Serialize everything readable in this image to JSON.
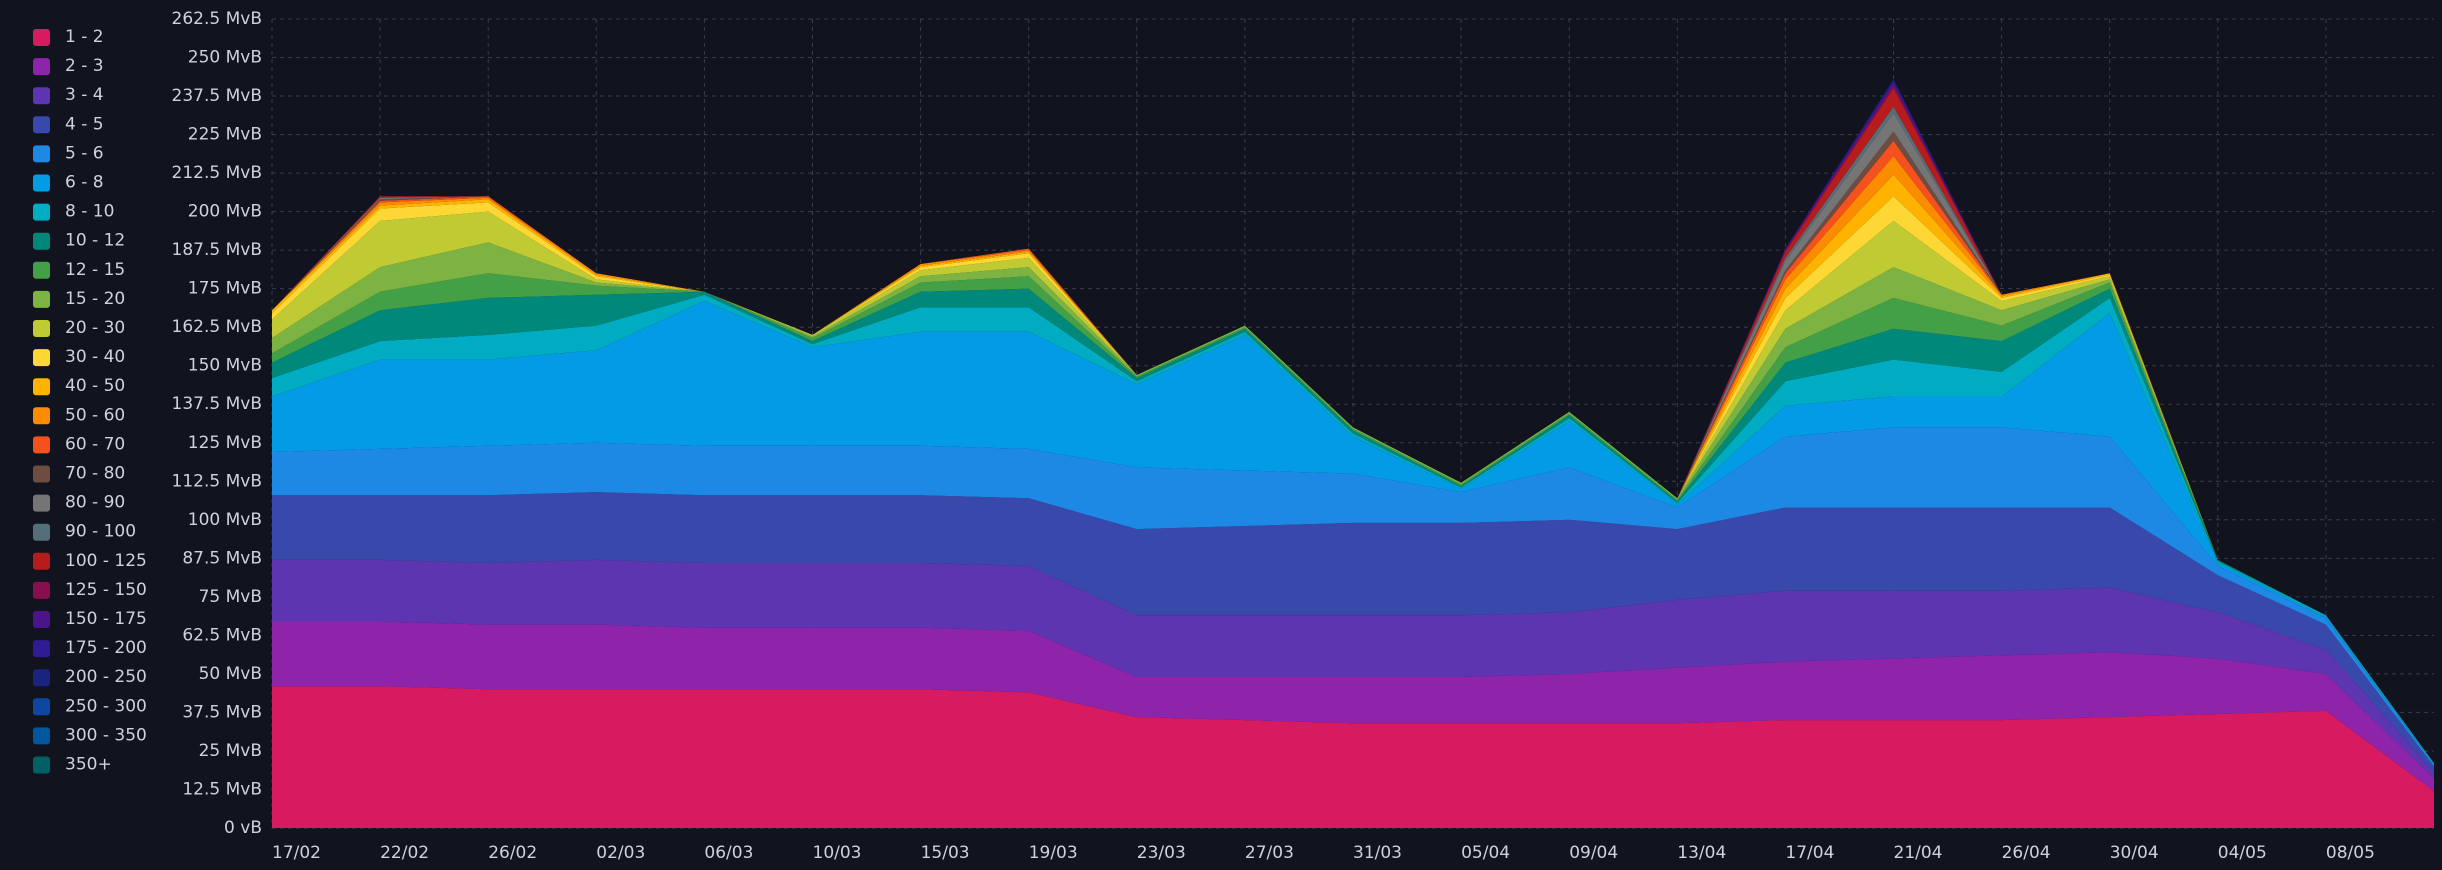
{
  "chart_data": {
    "type": "stacked_area",
    "categories": [
      "17/02",
      "22/02",
      "26/02",
      "02/03",
      "06/03",
      "10/03",
      "15/03",
      "19/03",
      "23/03",
      "27/03",
      "31/03",
      "05/04",
      "09/04",
      "13/04",
      "17/04",
      "21/04",
      "26/04",
      "30/04",
      "04/05",
      "08/05",
      null
    ],
    "ylim": [
      0,
      262.5
    ],
    "yticks": [
      {
        "value": 0,
        "label": "0 vB"
      },
      {
        "value": 12.5,
        "label": "12.5 MvB"
      },
      {
        "value": 25,
        "label": "25 MvB"
      },
      {
        "value": 37.5,
        "label": "37.5 MvB"
      },
      {
        "value": 50,
        "label": "50 MvB"
      },
      {
        "value": 62.5,
        "label": "62.5 MvB"
      },
      {
        "value": 75,
        "label": "75 MvB"
      },
      {
        "value": 87.5,
        "label": "87.5 MvB"
      },
      {
        "value": 100,
        "label": "100 MvB"
      },
      {
        "value": 112.5,
        "label": "112.5 MvB"
      },
      {
        "value": 125,
        "label": "125 MvB"
      },
      {
        "value": 137.5,
        "label": "137.5 MvB"
      },
      {
        "value": 150,
        "label": "150 MvB"
      },
      {
        "value": 162.5,
        "label": "162.5 MvB"
      },
      {
        "value": 175,
        "label": "175 MvB"
      },
      {
        "value": 187.5,
        "label": "187.5 MvB"
      },
      {
        "value": 200,
        "label": "200 MvB"
      },
      {
        "value": 212.5,
        "label": "212.5 MvB"
      },
      {
        "value": 225,
        "label": "225 MvB"
      },
      {
        "value": 237.5,
        "label": "237.5 MvB"
      },
      {
        "value": 250,
        "label": "250 MvB"
      },
      {
        "value": 262.5,
        "label": "262.5 MvB"
      }
    ],
    "grid": true,
    "legend": "left",
    "series": [
      {
        "name": "1 - 2",
        "color": "#d81b60",
        "values": [
          46,
          46,
          45,
          45,
          45,
          45,
          45,
          44,
          36,
          35,
          34,
          34,
          34,
          34,
          35,
          35,
          35,
          36,
          37,
          38,
          12
        ]
      },
      {
        "name": "2 - 3",
        "color": "#8e24aa",
        "values": [
          21,
          21,
          21,
          21,
          20,
          20,
          20,
          20,
          13,
          14,
          15,
          15,
          16,
          18,
          19,
          20,
          21,
          21,
          18,
          12,
          4
        ]
      },
      {
        "name": "3 - 4",
        "color": "#5e35b1",
        "values": [
          20,
          20,
          20,
          21,
          21,
          21,
          21,
          21,
          20,
          20,
          20,
          20,
          20,
          22,
          23,
          22,
          21,
          21,
          15,
          8,
          2
        ]
      },
      {
        "name": "4 - 5",
        "color": "#3949ab",
        "values": [
          21,
          21,
          22,
          22,
          22,
          22,
          22,
          22,
          28,
          29,
          30,
          30,
          30,
          23,
          27,
          27,
          27,
          26,
          12,
          8,
          2
        ]
      },
      {
        "name": "5 - 6",
        "color": "#1e88e5",
        "values": [
          14,
          15,
          16,
          16,
          16,
          16,
          16,
          16,
          20,
          18,
          16,
          10,
          17,
          7,
          23,
          26,
          26,
          23,
          3,
          2,
          0.5
        ]
      },
      {
        "name": "6 - 8",
        "color": "#039be5",
        "values": [
          18,
          29,
          28,
          30,
          47,
          32,
          37,
          38,
          27,
          44,
          12,
          1,
          15,
          1,
          10,
          10,
          10,
          40,
          1,
          0.5,
          0
        ]
      },
      {
        "name": "8 - 10",
        "color": "#00acc1",
        "values": [
          6,
          6,
          8,
          8,
          2,
          1,
          8,
          8,
          1,
          1,
          1,
          0.5,
          1,
          0.5,
          8,
          12,
          8,
          5,
          0.5,
          0.5,
          0.5
        ]
      },
      {
        "name": "10 - 12",
        "color": "#00897b",
        "values": [
          5,
          10,
          12,
          10,
          1,
          1,
          5,
          6,
          1,
          1,
          1,
          0.5,
          1,
          0.5,
          6,
          10,
          10,
          3,
          0.5,
          0,
          0
        ]
      },
      {
        "name": "12 - 15",
        "color": "#43a047",
        "values": [
          3,
          6,
          8,
          3,
          0,
          1,
          3,
          4,
          0.5,
          0.5,
          0.5,
          0.5,
          0.5,
          0.5,
          5,
          10,
          5,
          2,
          0,
          0,
          0
        ]
      },
      {
        "name": "15 - 20",
        "color": "#7cb342",
        "values": [
          5,
          8,
          10,
          1,
          0,
          0.5,
          2,
          3,
          0.5,
          0.5,
          0.5,
          0.5,
          0.5,
          0.5,
          6,
          10,
          5,
          1,
          0,
          0,
          0
        ]
      },
      {
        "name": "20 - 30",
        "color": "#c0ca33",
        "values": [
          6,
          15,
          10,
          1,
          0,
          0.5,
          2,
          3,
          0,
          0,
          0,
          0,
          0,
          0,
          6,
          15,
          3,
          1,
          0,
          0,
          0
        ]
      },
      {
        "name": "30 - 40",
        "color": "#fdd835",
        "values": [
          2,
          4,
          3,
          1,
          0,
          0,
          1,
          1.5,
          0,
          0,
          0,
          0,
          0,
          0,
          4,
          8,
          1,
          0.5,
          0,
          0,
          0
        ]
      },
      {
        "name": "40 - 50",
        "color": "#ffb300",
        "values": [
          1,
          1,
          1,
          0.5,
          0,
          0,
          0.5,
          0.5,
          0,
          0,
          0,
          0,
          0,
          0,
          3,
          7,
          0.5,
          0.5,
          0,
          0,
          0
        ]
      },
      {
        "name": "50 - 60",
        "color": "#fb8c00",
        "values": [
          0,
          1,
          0.5,
          0.5,
          0,
          0,
          0.5,
          0.5,
          0,
          0,
          0,
          0,
          0,
          0,
          3,
          6,
          0.5,
          0,
          0,
          0,
          0
        ]
      },
      {
        "name": "60 - 70",
        "color": "#f4511e",
        "values": [
          0,
          0.5,
          0.5,
          0,
          0,
          0,
          0,
          0.5,
          0,
          0,
          0,
          0,
          0,
          0,
          2,
          5,
          0,
          0,
          0,
          0,
          0
        ]
      },
      {
        "name": "70 - 80",
        "color": "#6d4c41",
        "values": [
          0,
          0.5,
          0,
          0,
          0,
          0,
          0,
          0,
          0,
          0,
          0,
          0,
          0,
          0,
          1,
          3,
          0,
          0,
          0,
          0,
          0
        ]
      },
      {
        "name": "80 - 90",
        "color": "#757575",
        "values": [
          0,
          0.5,
          0,
          0,
          0,
          0,
          0,
          0,
          0,
          0,
          0,
          0,
          0,
          0,
          3,
          6,
          0,
          0,
          0,
          0,
          0
        ]
      },
      {
        "name": "90 - 100",
        "color": "#546e7a",
        "values": [
          0,
          0,
          0,
          0,
          0,
          0,
          0,
          0,
          0,
          0,
          0,
          0,
          0,
          0,
          1,
          2,
          0,
          0,
          0,
          0,
          0
        ]
      },
      {
        "name": "100 - 125",
        "color": "#b71c1c",
        "values": [
          0,
          0.5,
          0,
          0,
          0,
          0,
          0,
          0,
          0,
          0,
          0,
          0,
          0,
          0,
          2,
          6,
          0,
          0,
          0,
          0,
          0
        ]
      },
      {
        "name": "125 - 150",
        "color": "#880e4f",
        "values": [
          0,
          0,
          0,
          0,
          0,
          0,
          0,
          0,
          0,
          0,
          0,
          0,
          0,
          0,
          0.5,
          1,
          0,
          0,
          0,
          0,
          0
        ]
      },
      {
        "name": "150 - 175",
        "color": "#4a148c",
        "values": [
          0,
          0,
          0,
          0,
          0,
          0,
          0,
          0,
          0,
          0,
          0,
          0,
          0,
          0,
          0.5,
          1,
          0,
          0,
          0,
          0,
          0
        ]
      },
      {
        "name": "175 - 200",
        "color": "#311b92",
        "values": [
          0,
          0,
          0,
          0,
          0,
          0,
          0,
          0,
          0,
          0,
          0,
          0,
          0,
          0,
          0,
          0.5,
          0,
          0,
          0,
          0,
          0
        ]
      },
      {
        "name": "200 - 250",
        "color": "#1a237e",
        "values": [
          0,
          0,
          0,
          0,
          0,
          0,
          0,
          0,
          0,
          0,
          0,
          0,
          0,
          0,
          0,
          0.5,
          0,
          0,
          0,
          0,
          0
        ]
      },
      {
        "name": "250 - 300",
        "color": "#0d47a1",
        "values": [
          0,
          0,
          0,
          0,
          0,
          0,
          0,
          0,
          0,
          0,
          0,
          0,
          0,
          0,
          0,
          0,
          0,
          0,
          0,
          0,
          0
        ]
      },
      {
        "name": "300 - 350",
        "color": "#01579b",
        "values": [
          0,
          0,
          0,
          0,
          0,
          0,
          0,
          0,
          0,
          0,
          0,
          0,
          0,
          0,
          0,
          0,
          0,
          0,
          0,
          0,
          0
        ]
      },
      {
        "name": "350+",
        "color": "#006064",
        "values": [
          0,
          0,
          0,
          0,
          0,
          0,
          0,
          0,
          0,
          0,
          0,
          0,
          0,
          0,
          0,
          0,
          0,
          0,
          0,
          0,
          0
        ]
      }
    ]
  }
}
